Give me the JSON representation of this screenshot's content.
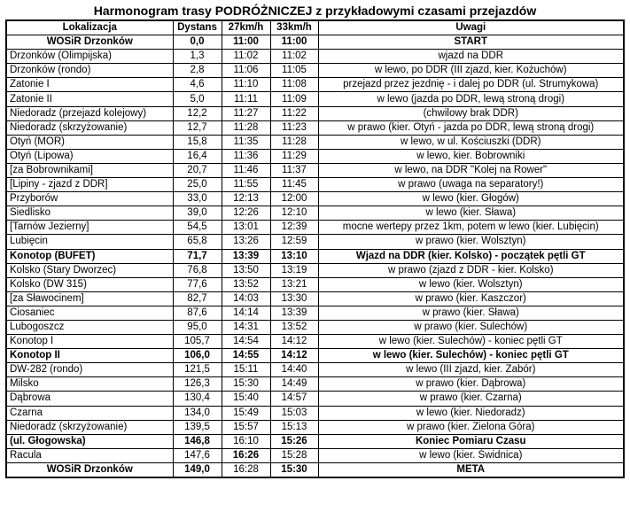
{
  "title": "Harmonogram trasy PODRÓŻNICZEJ z przykładowymi czasami przejazdów",
  "table": {
    "columns": [
      "Lokalizacja",
      "Dystans",
      "27km/h",
      "33km/h",
      "Uwagi"
    ],
    "rows": [
      {
        "loc": "WOSiR Drzonków",
        "dist": "0,0",
        "t27": "11:00",
        "t33": "11:00",
        "uwagi": "START",
        "bold": [
          "loc",
          "dist",
          "t27",
          "t33",
          "uwagi"
        ],
        "locCenter": true
      },
      {
        "loc": "Drzonków (Olimpijska)",
        "dist": "1,3",
        "t27": "11:02",
        "t33": "11:02",
        "uwagi": "wjazd na DDR",
        "bold": []
      },
      {
        "loc": "Drzonków (rondo)",
        "dist": "2,8",
        "t27": "11:06",
        "t33": "11:05",
        "uwagi": "w lewo, po DDR (III zjazd, kier. Kożuchów)",
        "bold": []
      },
      {
        "loc": "Zatonie I",
        "dist": "4,6",
        "t27": "11:10",
        "t33": "11:08",
        "uwagi": "przejazd przez jezdnię - i dalej po DDR (ul. Strumykowa)",
        "bold": []
      },
      {
        "loc": "Zatonie II",
        "dist": "5,0",
        "t27": "11:11",
        "t33": "11:09",
        "uwagi": "w lewo (jazda po DDR, lewą stroną drogi)",
        "bold": []
      },
      {
        "loc": "Niedoradz (przejazd kolejowy)",
        "dist": "12,2",
        "t27": "11:27",
        "t33": "11:22",
        "uwagi": "(chwilowy brak DDR)",
        "bold": []
      },
      {
        "loc": "Niedoradz (skrzyżowanie)",
        "dist": "12,7",
        "t27": "11:28",
        "t33": "11:23",
        "uwagi": "w prawo (kier. Otyń - jazda po DDR, lewą stroną drogi)",
        "bold": []
      },
      {
        "loc": "Otyń (MOR)",
        "dist": "15,8",
        "t27": "11:35",
        "t33": "11:28",
        "uwagi": "w lewo, w ul. Kościuszki (DDR)",
        "bold": []
      },
      {
        "loc": "Otyń (Lipowa)",
        "dist": "16,4",
        "t27": "11:36",
        "t33": "11:29",
        "uwagi": "w lewo, kier. Bobrowniki",
        "bold": []
      },
      {
        "loc": "[za Bobrownikami]",
        "dist": "20,7",
        "t27": "11:46",
        "t33": "11:37",
        "uwagi": "w lewo, na DDR \"Kolej na Rower\"",
        "bold": []
      },
      {
        "loc": "[Lipiny - zjazd z DDR]",
        "dist": "25,0",
        "t27": "11:55",
        "t33": "11:45",
        "uwagi": "w prawo (uwaga na separatory!)",
        "bold": []
      },
      {
        "loc": "Przyborów",
        "dist": "33,0",
        "t27": "12:13",
        "t33": "12:00",
        "uwagi": "w lewo (kier. Głogów)",
        "bold": []
      },
      {
        "loc": "Siedlisko",
        "dist": "39,0",
        "t27": "12:26",
        "t33": "12:10",
        "uwagi": "w lewo (kier. Sława)",
        "bold": []
      },
      {
        "loc": "[Tarnów Jezierny]",
        "dist": "54,5",
        "t27": "13:01",
        "t33": "12:39",
        "uwagi": "mocne wertepy przez 1km, potem w lewo (kier. Lubięcin)",
        "bold": []
      },
      {
        "loc": "Lubięcin",
        "dist": "65,8",
        "t27": "13:26",
        "t33": "12:59",
        "uwagi": "w prawo (kier. Wolsztyn)",
        "bold": []
      },
      {
        "loc": "Konotop (BUFET)",
        "dist": "71,7",
        "t27": "13:39",
        "t33": "13:10",
        "uwagi": "Wjazd na DDR (kier. Kolsko) - początek pętli GT",
        "bold": [
          "loc",
          "dist",
          "t27",
          "t33",
          "uwagi"
        ]
      },
      {
        "loc": "Kolsko (Stary Dworzec)",
        "dist": "76,8",
        "t27": "13:50",
        "t33": "13:19",
        "uwagi": "w prawo (zjazd z DDR - kier. Kolsko)",
        "bold": []
      },
      {
        "loc": "Kolsko (DW 315)",
        "dist": "77,6",
        "t27": "13:52",
        "t33": "13:21",
        "uwagi": "w lewo (kier. Wolsztyn)",
        "bold": []
      },
      {
        "loc": "[za Sławocinem]",
        "dist": "82,7",
        "t27": "14:03",
        "t33": "13:30",
        "uwagi": "w prawo (kier. Kaszczor)",
        "bold": []
      },
      {
        "loc": "Ciosaniec",
        "dist": "87,6",
        "t27": "14:14",
        "t33": "13:39",
        "uwagi": "w prawo (kier. Sława)",
        "bold": []
      },
      {
        "loc": "Lubogoszcz",
        "dist": "95,0",
        "t27": "14:31",
        "t33": "13:52",
        "uwagi": "w prawo (kier. Sulechów)",
        "bold": []
      },
      {
        "loc": "Konotop I",
        "dist": "105,7",
        "t27": "14:54",
        "t33": "14:12",
        "uwagi": "w lewo (kier. Sulechów) - koniec pętli GT",
        "bold": []
      },
      {
        "loc": "Konotop II",
        "dist": "106,0",
        "t27": "14:55",
        "t33": "14:12",
        "uwagi": "w lewo (kier. Sulechów) - koniec pętli GT",
        "bold": [
          "loc",
          "dist",
          "t27",
          "t33",
          "uwagi"
        ]
      },
      {
        "loc": "DW-282 (rondo)",
        "dist": "121,5",
        "t27": "15:11",
        "t33": "14:40",
        "uwagi": "w lewo (III zjazd, kier. Zabór)",
        "bold": []
      },
      {
        "loc": "Milsko",
        "dist": "126,3",
        "t27": "15:30",
        "t33": "14:49",
        "uwagi": "w prawo (kier. Dąbrowa)",
        "bold": []
      },
      {
        "loc": "Dąbrowa",
        "dist": "130,4",
        "t27": "15:40",
        "t33": "14:57",
        "uwagi": "w prawo (kier. Czarna)",
        "bold": []
      },
      {
        "loc": "Czarna",
        "dist": "134,0",
        "t27": "15:49",
        "t33": "15:03",
        "uwagi": "w lewo (kier. Niedoradz)",
        "bold": []
      },
      {
        "loc": "Niedoradz (skrzyżowanie)",
        "dist": "139,5",
        "t27": "15:57",
        "t33": "15:13",
        "uwagi": "w prawo (kier. Zielona Góra)",
        "bold": []
      },
      {
        "loc": "(ul. Głogowska)",
        "dist": "146,8",
        "t27": "16:10",
        "t33": "15:26",
        "uwagi": "Koniec Pomiaru Czasu",
        "bold": [
          "loc",
          "dist",
          "t33",
          "uwagi"
        ]
      },
      {
        "loc": "Racula",
        "dist": "147,6",
        "t27": "16:26",
        "t33": "15:28",
        "uwagi": "w lewo (kier. Świdnica)",
        "bold": [
          "t27"
        ]
      },
      {
        "loc": "WOSiR Drzonków",
        "dist": "149,0",
        "t27": "16:28",
        "t33": "15:30",
        "uwagi": "META",
        "bold": [
          "loc",
          "dist",
          "t33",
          "uwagi"
        ],
        "locCenter": true
      }
    ]
  }
}
